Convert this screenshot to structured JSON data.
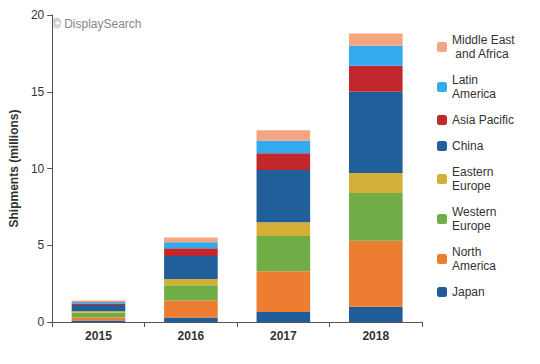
{
  "chart_data": {
    "type": "bar",
    "stacked": true,
    "y_label": "Shipments (millions)",
    "annotations": [
      "© DisplaySearch"
    ],
    "categories": [
      "2015",
      "2016",
      "2017",
      "2018"
    ],
    "series": [
      {
        "name": "Japan",
        "color": "#1f5c99",
        "values": [
          0.1,
          0.3,
          0.65,
          1.0
        ]
      },
      {
        "name": "North America",
        "color": "#ed7d31",
        "values": [
          0.2,
          1.1,
          2.65,
          4.3
        ]
      },
      {
        "name": "Western Europe",
        "color": "#70ad47",
        "values": [
          0.3,
          1.0,
          2.3,
          3.1
        ]
      },
      {
        "name": "Eastern Europe",
        "color": "#d4af37",
        "values": [
          0.1,
          0.4,
          0.9,
          1.3
        ]
      },
      {
        "name": "China",
        "color": "#215f9a",
        "values": [
          0.4,
          1.5,
          3.4,
          5.3
        ]
      },
      {
        "name": "Asia Pacific",
        "color": "#c0282d",
        "values": [
          0.1,
          0.5,
          1.1,
          1.7
        ]
      },
      {
        "name": "Latin America",
        "color": "#33aaee",
        "values": [
          0.1,
          0.4,
          0.8,
          1.3
        ]
      },
      {
        "name": "Middle East and Africa",
        "color": "#f4a582",
        "values": [
          0.1,
          0.3,
          0.7,
          0.8
        ]
      }
    ],
    "ylim": [
      0,
      20
    ],
    "yticks": [
      0,
      5,
      10,
      15,
      20
    ],
    "grid": false,
    "legend": "right"
  }
}
